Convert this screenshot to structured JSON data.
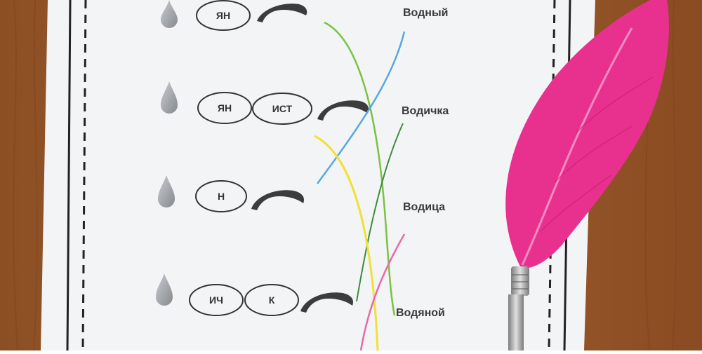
{
  "worksheet": {
    "rows": [
      {
        "morphemes": [
          "ЯН"
        ]
      },
      {
        "morphemes": [
          "ЯН",
          "ИСТ"
        ]
      },
      {
        "morphemes": [
          "Н"
        ]
      },
      {
        "morphemes": [
          "ИЧ",
          "К"
        ]
      }
    ],
    "words": [
      "Водный",
      "Водичка",
      "Водица",
      "Водяной"
    ]
  },
  "colors": {
    "table": "#9a5a2e",
    "paper": "#f4f5f6",
    "drop": "#9ea3a8",
    "ending_arc": "#3c3c3c",
    "feather": "#e8318f",
    "pen_metal": "#b8b8b8",
    "line_green": "#7bc242",
    "line_blue": "#56a7e0",
    "line_dark_green": "#3f8a3f",
    "line_yellow": "#f2e03a",
    "line_pink": "#e86aa8"
  }
}
